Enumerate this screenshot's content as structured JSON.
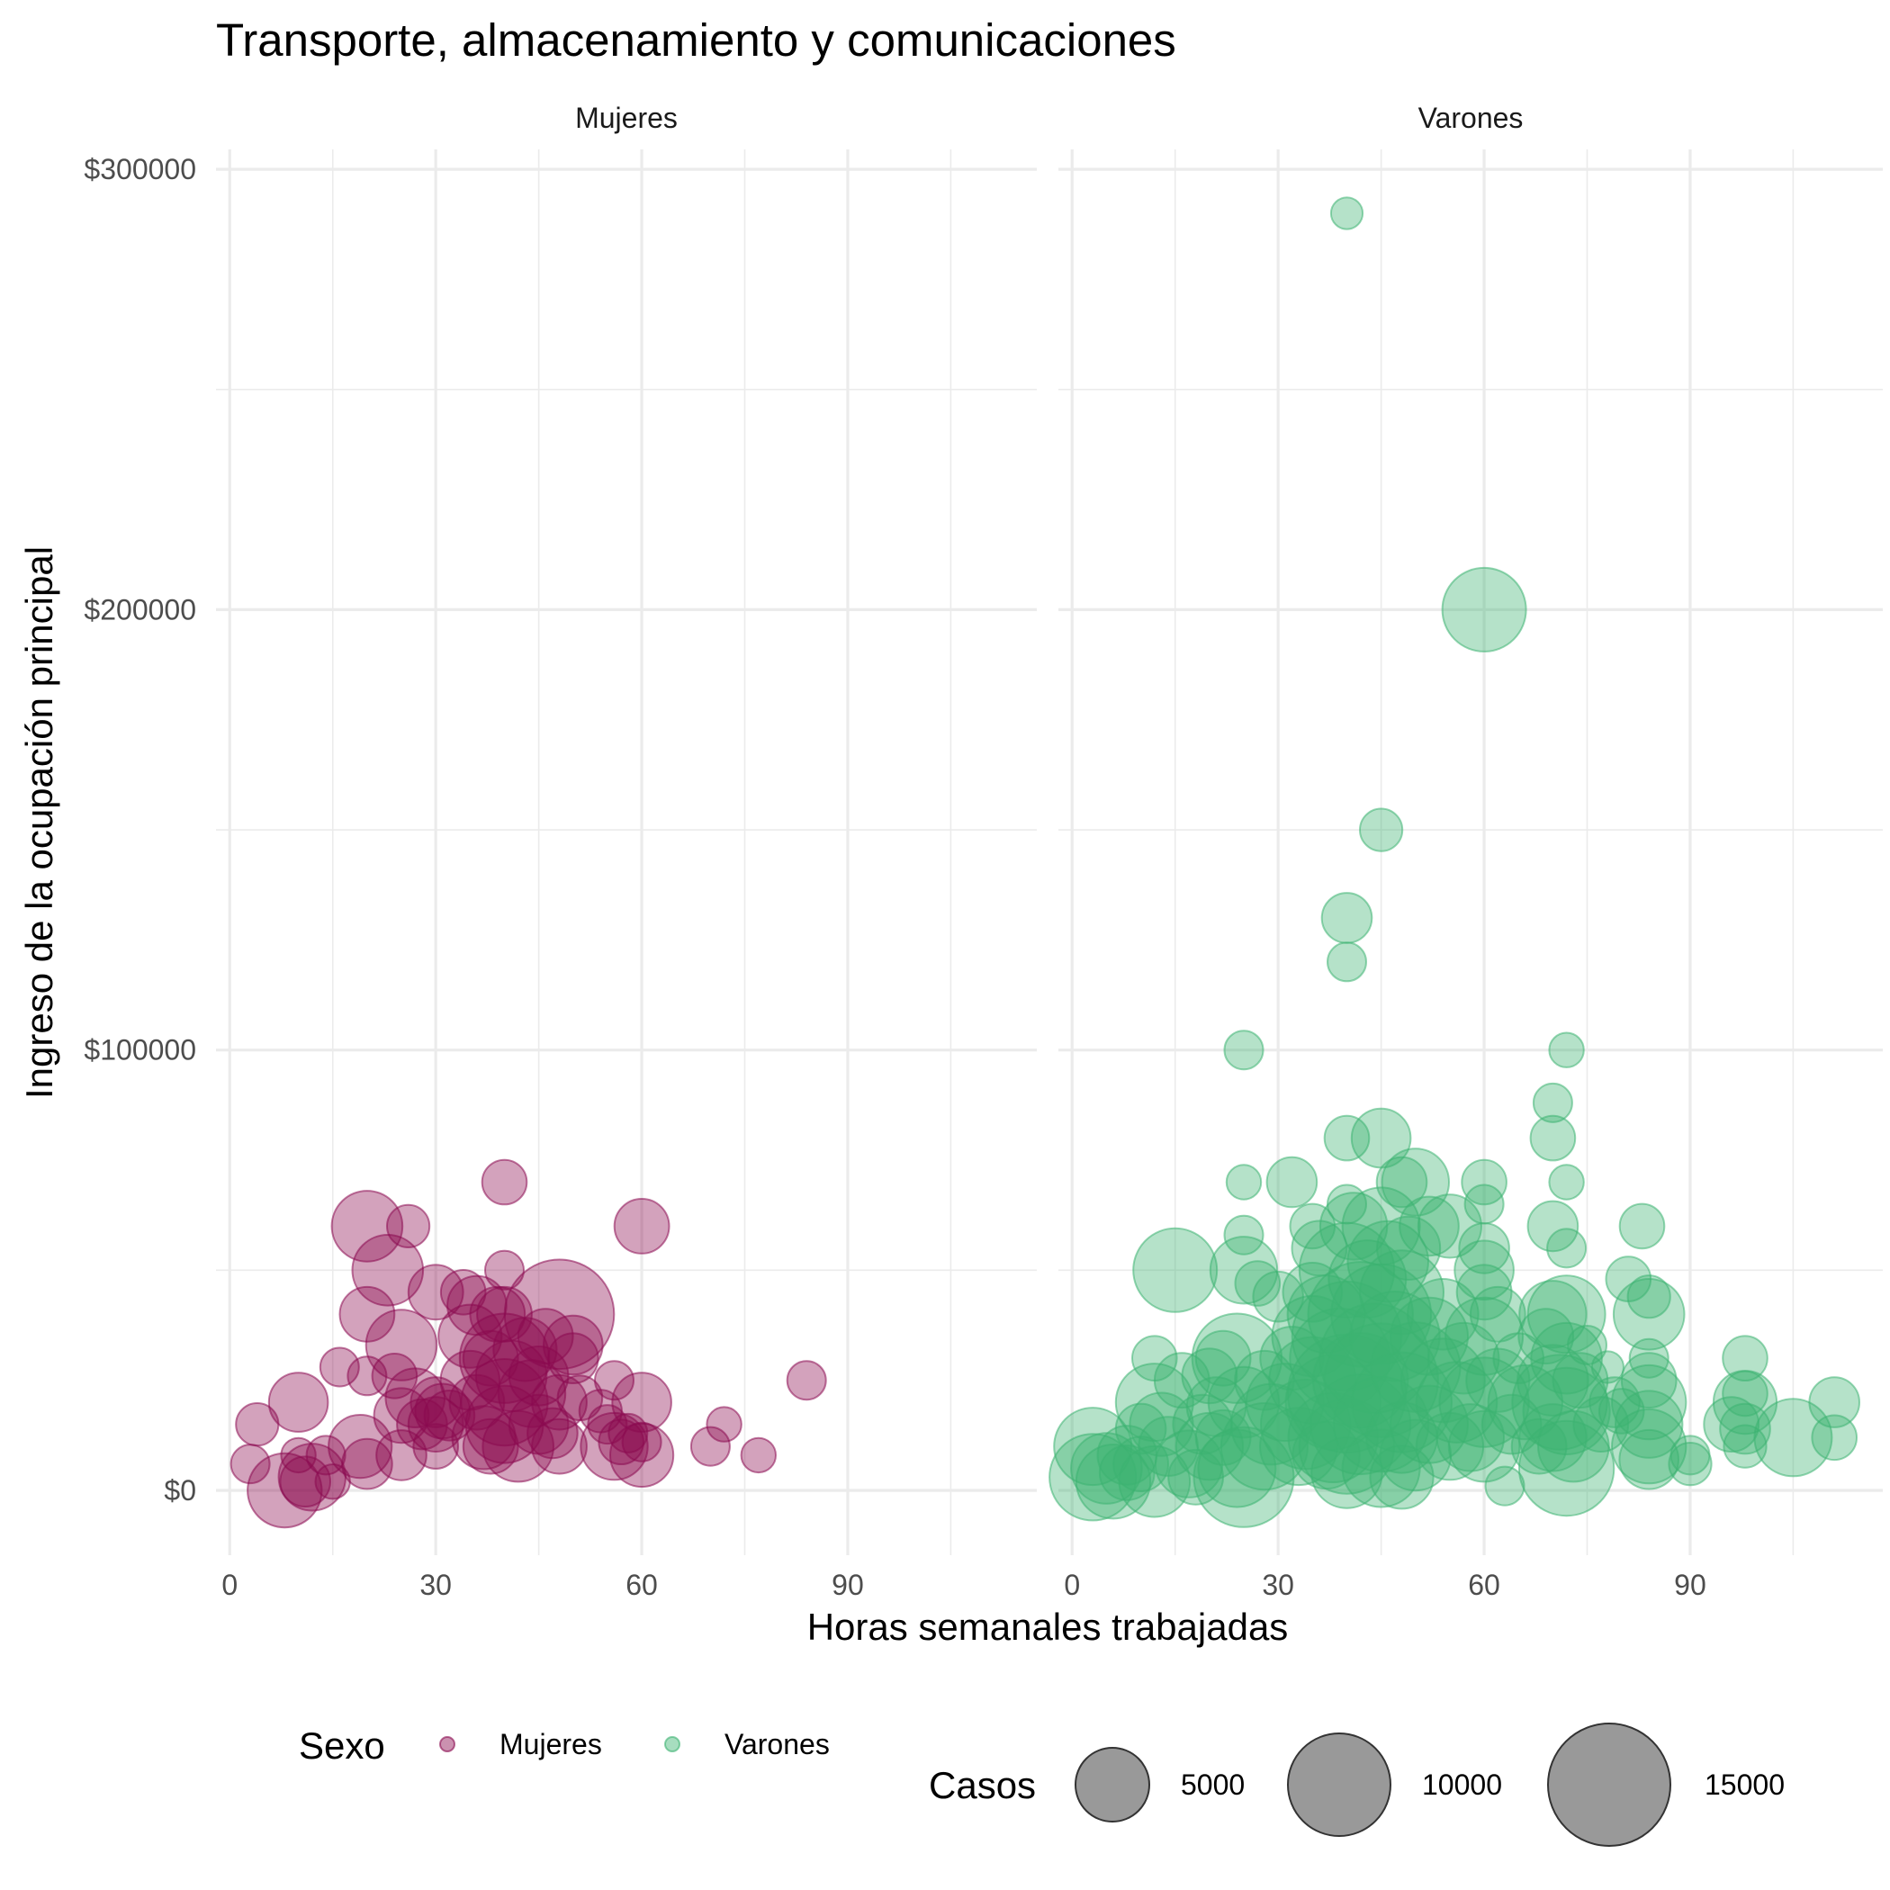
{
  "colors": {
    "Mujeres": "#8B0A50",
    "Varones": "#3CB371",
    "size_key": "#333333"
  },
  "chart_data": {
    "type": "scatter",
    "title": "Transporte, almacenamiento y comunicaciones",
    "xlabel": "Horas semanales trabajadas",
    "ylabel": "Ingreso de la ocupación principal",
    "xlim": [
      -2,
      118
    ],
    "ylim": [
      -15000,
      302000
    ],
    "x_ticks": [
      0,
      30,
      60,
      90
    ],
    "x_tick_labels": [
      "0",
      "30",
      "60",
      "90"
    ],
    "y_ticks": [
      0,
      100000,
      200000,
      300000
    ],
    "y_tick_labels": [
      "$0",
      "$100000",
      "$200000",
      "$300000"
    ],
    "grid": true,
    "facets": [
      "Mujeres",
      "Varones"
    ],
    "legend": {
      "color_title": "Sexo",
      "color_items": [
        "Mujeres",
        "Varones"
      ],
      "size_title": "Casos",
      "size_items": [
        "5000",
        "10000",
        "15000"
      ],
      "position": "bottom"
    },
    "series": [
      {
        "name": "Mujeres",
        "points": [
          [
            3,
            6000,
            1500
          ],
          [
            4,
            15000,
            1800
          ],
          [
            8,
            0,
            5500
          ],
          [
            10,
            20000,
            3500
          ],
          [
            10,
            8000,
            1200
          ],
          [
            11,
            2000,
            2500
          ],
          [
            12,
            3000,
            4500
          ],
          [
            14,
            8000,
            1500
          ],
          [
            15,
            2000,
            1200
          ],
          [
            16,
            28000,
            1500
          ],
          [
            19,
            10000,
            4000
          ],
          [
            20,
            60000,
            5000
          ],
          [
            20,
            40000,
            3000
          ],
          [
            20,
            26000,
            1500
          ],
          [
            20,
            6000,
            2500
          ],
          [
            23,
            50000,
            5000
          ],
          [
            24,
            26000,
            2000
          ],
          [
            25,
            33000,
            5000
          ],
          [
            25,
            17000,
            3000
          ],
          [
            25,
            8000,
            2500
          ],
          [
            26,
            60000,
            1800
          ],
          [
            27,
            21000,
            3500
          ],
          [
            28,
            15000,
            2500
          ],
          [
            30,
            45000,
            3000
          ],
          [
            30,
            20000,
            2500
          ],
          [
            30,
            15000,
            3000
          ],
          [
            30,
            10000,
            2000
          ],
          [
            31,
            18000,
            3000
          ],
          [
            32,
            17000,
            2500
          ],
          [
            34,
            45000,
            2000
          ],
          [
            35,
            35000,
            4000
          ],
          [
            35,
            25000,
            3500
          ],
          [
            36,
            42000,
            3500
          ],
          [
            36,
            20000,
            3000
          ],
          [
            37,
            12000,
            4000
          ],
          [
            38,
            30000,
            3000
          ],
          [
            38,
            10000,
            3000
          ],
          [
            39,
            40000,
            3000
          ],
          [
            40,
            70000,
            2000
          ],
          [
            40,
            50000,
            1500
          ],
          [
            40,
            40000,
            3000
          ],
          [
            40,
            30000,
            8000
          ],
          [
            40,
            20000,
            7500
          ],
          [
            40,
            15000,
            6000
          ],
          [
            41,
            26000,
            5000
          ],
          [
            42,
            10000,
            5000
          ],
          [
            43,
            32000,
            4000
          ],
          [
            44,
            22000,
            4500
          ],
          [
            45,
            15000,
            3500
          ],
          [
            45,
            26000,
            3500
          ],
          [
            46,
            35000,
            3000
          ],
          [
            47,
            13000,
            2500
          ],
          [
            48,
            40000,
            12000
          ],
          [
            48,
            20000,
            3000
          ],
          [
            48,
            10000,
            3000
          ],
          [
            50,
            33000,
            3500
          ],
          [
            50,
            30000,
            2500
          ],
          [
            51,
            21000,
            2000
          ],
          [
            54,
            18000,
            1800
          ],
          [
            55,
            15000,
            1500
          ],
          [
            56,
            10000,
            4500
          ],
          [
            56,
            25000,
            1500
          ],
          [
            57,
            11000,
            2000
          ],
          [
            58,
            13000,
            1500
          ],
          [
            60,
            60000,
            3000
          ],
          [
            60,
            20000,
            3500
          ],
          [
            60,
            8000,
            4000
          ],
          [
            60,
            11000,
            1500
          ],
          [
            70,
            10000,
            1500
          ],
          [
            72,
            15000,
            1200
          ],
          [
            77,
            8000,
            1200
          ],
          [
            84,
            25000,
            1500
          ]
        ]
      },
      {
        "name": "Varones",
        "points": [
          [
            3,
            10000,
            6000
          ],
          [
            3,
            3000,
            7500
          ],
          [
            5,
            5000,
            5000
          ],
          [
            6,
            2000,
            5500
          ],
          [
            8,
            8000,
            3500
          ],
          [
            8,
            4000,
            3000
          ],
          [
            10,
            14000,
            2500
          ],
          [
            10,
            6000,
            3000
          ],
          [
            12,
            30000,
            2000
          ],
          [
            12,
            20000,
            6000
          ],
          [
            12,
            2000,
            5000
          ],
          [
            13,
            15000,
            4000
          ],
          [
            14,
            10000,
            3500
          ],
          [
            15,
            50000,
            7000
          ],
          [
            16,
            25000,
            3000
          ],
          [
            17,
            6000,
            4500
          ],
          [
            18,
            3000,
            3000
          ],
          [
            19,
            15000,
            3500
          ],
          [
            20,
            26000,
            3000
          ],
          [
            20,
            10000,
            4500
          ],
          [
            21,
            19000,
            3500
          ],
          [
            22,
            30000,
            3000
          ],
          [
            22,
            12000,
            3000
          ],
          [
            24,
            30000,
            8000
          ],
          [
            24,
            5000,
            6000
          ],
          [
            25,
            100000,
            1500
          ],
          [
            25,
            70000,
            1200
          ],
          [
            25,
            58000,
            1500
          ],
          [
            25,
            50000,
            4500
          ],
          [
            25,
            20000,
            5000
          ],
          [
            25,
            3000,
            10000
          ],
          [
            27,
            47000,
            2000
          ],
          [
            28,
            25000,
            3500
          ],
          [
            28,
            10000,
            7500
          ],
          [
            29,
            15000,
            6500
          ],
          [
            30,
            44000,
            2500
          ],
          [
            31,
            20000,
            6000
          ],
          [
            32,
            70000,
            2500
          ],
          [
            32,
            30000,
            4000
          ],
          [
            33,
            10000,
            6000
          ],
          [
            34,
            15000,
            8000
          ],
          [
            35,
            60000,
            2000
          ],
          [
            35,
            45000,
            3500
          ],
          [
            35,
            35000,
            6500
          ],
          [
            35,
            25000,
            7500
          ],
          [
            36,
            55000,
            3000
          ],
          [
            37,
            40000,
            6000
          ],
          [
            37,
            8000,
            4500
          ],
          [
            38,
            20000,
            9000
          ],
          [
            38,
            12000,
            8000
          ],
          [
            39,
            30000,
            10000
          ],
          [
            40,
            290000,
            1000
          ],
          [
            40,
            130000,
            2500
          ],
          [
            40,
            120000,
            1500
          ],
          [
            40,
            80000,
            2000
          ],
          [
            40,
            65000,
            1500
          ],
          [
            40,
            50000,
            9000
          ],
          [
            40,
            35000,
            12000
          ],
          [
            40,
            22000,
            14000
          ],
          [
            40,
            10000,
            9000
          ],
          [
            40,
            4000,
            5000
          ],
          [
            41,
            60000,
            4500
          ],
          [
            42,
            40000,
            11000
          ],
          [
            42,
            25000,
            9000
          ],
          [
            42,
            15000,
            10000
          ],
          [
            43,
            48000,
            6000
          ],
          [
            44,
            30000,
            12000
          ],
          [
            45,
            150000,
            1800
          ],
          [
            45,
            80000,
            3500
          ],
          [
            45,
            60000,
            6000
          ],
          [
            45,
            40000,
            10000
          ],
          [
            45,
            25000,
            13000
          ],
          [
            45,
            15000,
            9000
          ],
          [
            45,
            5000,
            6000
          ],
          [
            46,
            52000,
            6500
          ],
          [
            47,
            35000,
            8000
          ],
          [
            48,
            70000,
            2500
          ],
          [
            48,
            45000,
            7000
          ],
          [
            48,
            20000,
            10000
          ],
          [
            48,
            12000,
            5000
          ],
          [
            48,
            3000,
            4000
          ],
          [
            49,
            55000,
            4000
          ],
          [
            50,
            70000,
            4500
          ],
          [
            50,
            28000,
            8000
          ],
          [
            50,
            8000,
            5000
          ],
          [
            52,
            60000,
            3500
          ],
          [
            52,
            35000,
            6000
          ],
          [
            52,
            15000,
            6000
          ],
          [
            54,
            40000,
            5000
          ],
          [
            54,
            25000,
            7000
          ],
          [
            55,
            60000,
            4000
          ],
          [
            55,
            10000,
            4500
          ],
          [
            56,
            20000,
            6500
          ],
          [
            57,
            30000,
            5000
          ],
          [
            58,
            12000,
            4500
          ],
          [
            60,
            200000,
            7000
          ],
          [
            60,
            70000,
            2000
          ],
          [
            60,
            65000,
            1500
          ],
          [
            60,
            55000,
            2500
          ],
          [
            60,
            50000,
            3500
          ],
          [
            60,
            45000,
            3000
          ],
          [
            60,
            35000,
            6000
          ],
          [
            60,
            20000,
            8000
          ],
          [
            60,
            10000,
            5000
          ],
          [
            62,
            40000,
            3000
          ],
          [
            62,
            25000,
            4000
          ],
          [
            63,
            1000,
            1500
          ],
          [
            64,
            15000,
            3500
          ],
          [
            65,
            30000,
            2500
          ],
          [
            66,
            20000,
            5500
          ],
          [
            68,
            10000,
            3000
          ],
          [
            69,
            35000,
            3000
          ],
          [
            70,
            60000,
            2500
          ],
          [
            70,
            40000,
            4500
          ],
          [
            70,
            80000,
            2000
          ],
          [
            70,
            88000,
            1500
          ],
          [
            70,
            25000,
            5000
          ],
          [
            70,
            12000,
            4500
          ],
          [
            71,
            20000,
            9000
          ],
          [
            72,
            100000,
            1200
          ],
          [
            72,
            70000,
            1200
          ],
          [
            72,
            55000,
            1500
          ],
          [
            72,
            40000,
            6000
          ],
          [
            72,
            30000,
            5000
          ],
          [
            72,
            18000,
            7500
          ],
          [
            72,
            5000,
            9000
          ],
          [
            73,
            10000,
            5000
          ],
          [
            74,
            25000,
            3000
          ],
          [
            75,
            33000,
            1500
          ],
          [
            77,
            15000,
            3000
          ],
          [
            78,
            28000,
            1000
          ],
          [
            79,
            20000,
            2500
          ],
          [
            80,
            18000,
            2000
          ],
          [
            81,
            48000,
            2000
          ],
          [
            83,
            60000,
            2000
          ],
          [
            84,
            44000,
            1800
          ],
          [
            84,
            40000,
            5000
          ],
          [
            84,
            30000,
            1500
          ],
          [
            84,
            25000,
            3000
          ],
          [
            84,
            20000,
            5500
          ],
          [
            84,
            15000,
            4500
          ],
          [
            84,
            10000,
            5500
          ],
          [
            84,
            7000,
            3500
          ],
          [
            90,
            8000,
            1500
          ],
          [
            90,
            6000,
            1800
          ],
          [
            96,
            15000,
            3000
          ],
          [
            98,
            30000,
            2000
          ],
          [
            98,
            22000,
            2000
          ],
          [
            98,
            20000,
            4000
          ],
          [
            98,
            14000,
            2500
          ],
          [
            98,
            10000,
            1800
          ],
          [
            105,
            12000,
            6000
          ],
          [
            111,
            20000,
            2500
          ],
          [
            111,
            12000,
            2000
          ]
        ]
      }
    ]
  }
}
